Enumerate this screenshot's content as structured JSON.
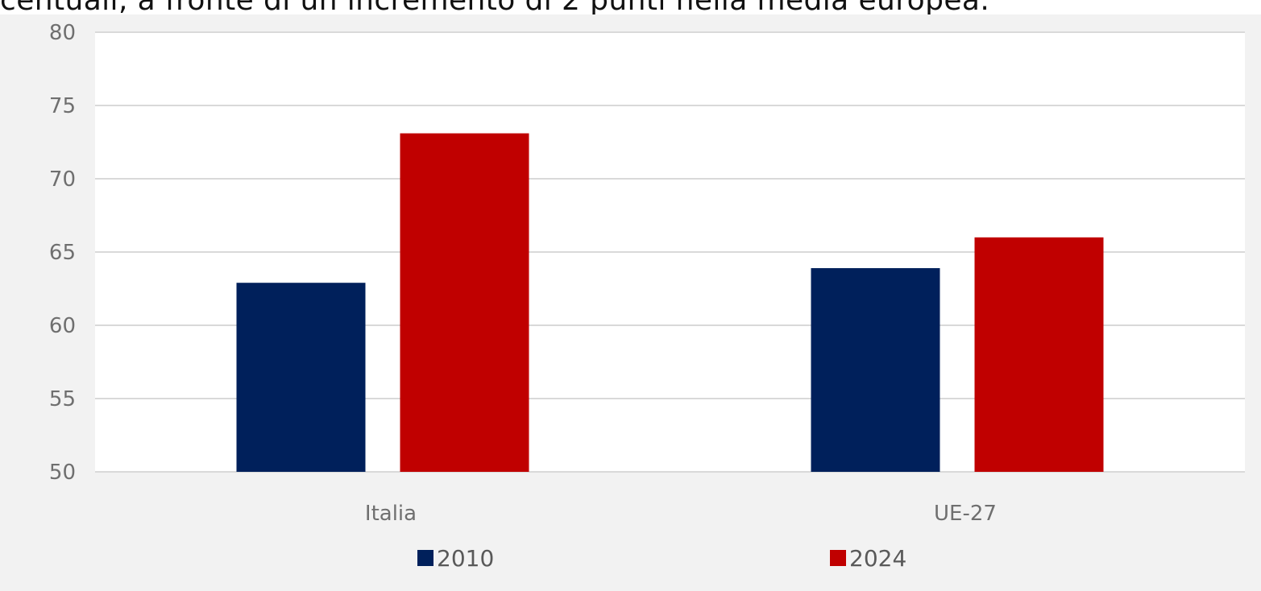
{
  "header_text": "centuali, a fronte di un incremento di 2 punti nella media europea.",
  "chart_data": {
    "type": "bar",
    "categories": [
      "Italia",
      "UE-27"
    ],
    "series": [
      {
        "name": "2010",
        "values": [
          62.9,
          63.9
        ],
        "color": "#00205b"
      },
      {
        "name": "2024",
        "values": [
          73.1,
          66.0
        ],
        "color": "#c00000"
      }
    ],
    "ylim": [
      50,
      80
    ],
    "yticks": [
      50,
      55,
      60,
      65,
      70,
      75,
      80
    ],
    "grid": true,
    "legend_position": "bottom",
    "background": "#f2f2f2",
    "plot_background": "#ffffff",
    "gridline_color": "#d9d9d9"
  }
}
